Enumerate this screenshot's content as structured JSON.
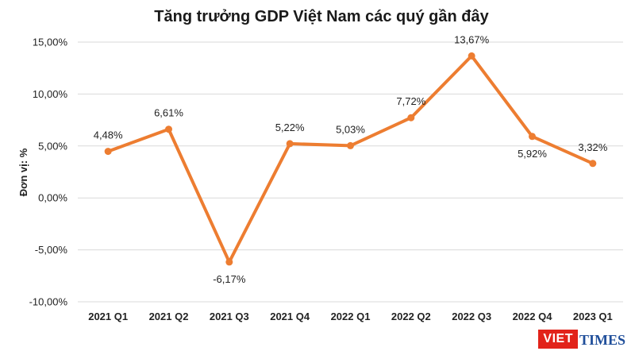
{
  "chart_data": {
    "type": "line",
    "title": "Tăng trưởng GDP Việt Nam các quý gần đây",
    "xlabel": "",
    "ylabel": "Đơn vị: %",
    "ylim": [
      -10,
      15
    ],
    "yticks": [
      15,
      10,
      5,
      0,
      -5,
      -10
    ],
    "ytick_labels": [
      "15,00%",
      "10,00%",
      "5,00%",
      "0,00%",
      "-5,00%",
      "-10,00%"
    ],
    "grid": true,
    "categories": [
      "2021 Q1",
      "2021 Q2",
      "2021 Q3",
      "2021 Q4",
      "2022 Q1",
      "2022 Q2",
      "2022 Q3",
      "2022 Q4",
      "2023 Q1"
    ],
    "values": [
      4.48,
      6.61,
      -6.17,
      5.22,
      5.03,
      7.72,
      13.67,
      5.92,
      3.32
    ],
    "data_labels": [
      "4,48%",
      "6,61%",
      "-6,17%",
      "5,22%",
      "5,03%",
      "7,72%",
      "13,67%",
      "5,92%",
      "3,32%"
    ],
    "data_label_positions": [
      "above",
      "above",
      "below",
      "above",
      "above",
      "above",
      "above",
      "below",
      "above"
    ],
    "line_color": "#ed7d31"
  },
  "logo": {
    "part1": "VIET",
    "part2": "TIMES"
  }
}
